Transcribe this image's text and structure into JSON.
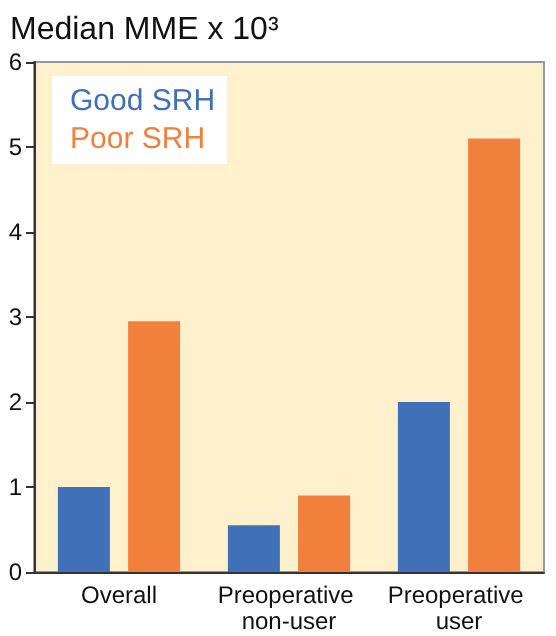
{
  "chart_data": {
    "type": "bar",
    "title": "Median MME x 10³",
    "categories": [
      "Overall",
      "Preoperative non-user",
      "Preoperative user"
    ],
    "series": [
      {
        "name": "Good SRH",
        "color": "#4070b8",
        "values": [
          1.0,
          0.55,
          2.0
        ]
      },
      {
        "name": "Poor SRH",
        "color": "#f0803c",
        "values": [
          2.95,
          0.9,
          5.1
        ]
      }
    ],
    "ylim": [
      0,
      6
    ],
    "yticks": [
      0,
      1,
      2,
      3,
      4,
      5,
      6
    ],
    "grid": false,
    "legend": "top left"
  }
}
